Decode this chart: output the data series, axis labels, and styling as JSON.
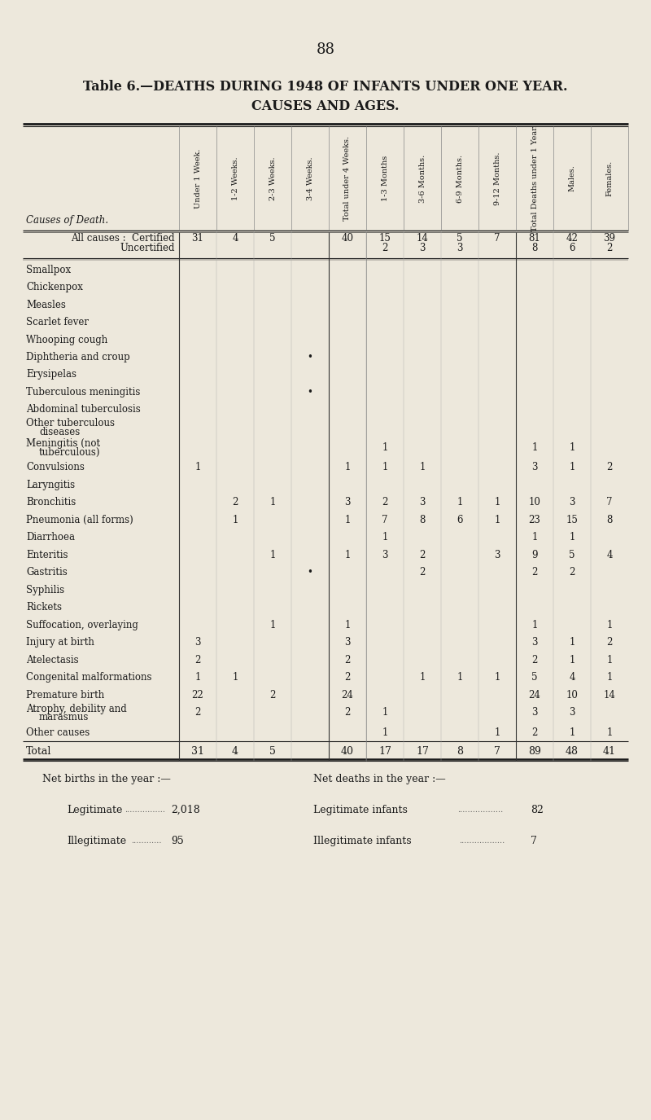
{
  "page_number": "88",
  "title_line1": "Table 6.—DEATHS DURING 1948 OF INFANTS UNDER ONE YEAR.",
  "title_line2": "CAUSES AND AGES.",
  "bg_color": "#ede8dc",
  "col_headers": [
    "Under 1 Week.",
    "1-2 Weeks.",
    "2-3 Weeks.",
    "3-4 Weeks.",
    "Total under 4 Weeks.",
    "1-3 Months",
    "3-6 Months.",
    "6-9 Months.",
    "9-12 Months.",
    "Total Deaths under 1 Year.",
    "Males.",
    "Females."
  ],
  "row_label_col": "Causes of Death.",
  "rows": [
    {
      "label": "All causes :  Certified",
      "label2": "Uncertified",
      "data": [
        "31",
        "4",
        "5",
        "",
        "40",
        "15",
        "14",
        "5",
        "7",
        "81",
        "42",
        "39"
      ],
      "data2": [
        "",
        "",
        "",
        "",
        "",
        "2",
        "3",
        "3",
        "",
        "8",
        "6",
        "2"
      ],
      "is_allcauses": true
    },
    {
      "label": "Smallpox",
      "data": [
        "",
        "",
        "",
        "",
        "",
        "",
        "",
        "",
        "",
        "",
        "",
        ""
      ]
    },
    {
      "label": "Chickenpox",
      "data": [
        "",
        "",
        "",
        "",
        "",
        "",
        "",
        "",
        "",
        "",
        "",
        ""
      ]
    },
    {
      "label": "Measles",
      "data": [
        "",
        "",
        "",
        "",
        "",
        "",
        "",
        "",
        "",
        "",
        "",
        ""
      ]
    },
    {
      "label": "Scarlet fever",
      "data": [
        "",
        "",
        "",
        "",
        "",
        "",
        "",
        "",
        "",
        "",
        "",
        ""
      ]
    },
    {
      "label": "Whooping cough",
      "data": [
        "",
        "",
        "",
        "",
        "",
        "",
        "",
        "",
        "",
        "",
        "",
        ""
      ]
    },
    {
      "label": "Diphtheria and croup",
      "data": [
        "",
        "",
        "",
        "•",
        "",
        "",
        "",
        "",
        "",
        "",
        "",
        ""
      ]
    },
    {
      "label": "Erysipelas",
      "data": [
        "",
        "",
        "",
        "",
        "",
        "",
        "",
        "",
        "",
        "",
        "",
        ""
      ]
    },
    {
      "label": "Tuberculous meningitis",
      "data": [
        "",
        "",
        "",
        "•",
        "",
        "",
        "",
        "",
        "",
        "",
        "",
        ""
      ]
    },
    {
      "label": "Abdominal tuberculosis",
      "data": [
        "",
        "",
        "",
        "",
        "",
        "",
        "",
        "",
        "",
        "",
        "",
        ""
      ]
    },
    {
      "label": "Other tuberculous",
      "data": [
        "",
        "",
        "",
        "",
        "",
        "",
        "",
        "",
        "",
        "",
        "",
        ""
      ],
      "indent2": "diseases"
    },
    {
      "label": "Meningitis (not",
      "data": [
        "",
        "",
        "",
        "",
        "",
        "1",
        "",
        "",
        "",
        "1",
        "1",
        ""
      ],
      "indent2": "tuberculous)"
    },
    {
      "label": "Convulsions",
      "data": [
        "1",
        "",
        "",
        "",
        "1",
        "1",
        "1",
        "",
        "",
        "3",
        "1",
        "2"
      ]
    },
    {
      "label": "Laryngitis",
      "data": [
        "",
        "",
        "",
        "",
        "",
        "",
        "",
        "",
        "",
        "",
        "",
        ""
      ]
    },
    {
      "label": "Bronchitis",
      "data": [
        "",
        "2",
        "1",
        "",
        "3",
        "2",
        "3",
        "1",
        "1",
        "10",
        "3",
        "7"
      ]
    },
    {
      "label": "Pneumonia (all forms)",
      "data": [
        "",
        "1",
        "",
        "",
        "1",
        "7",
        "8",
        "6",
        "1",
        "23",
        "15",
        "8"
      ]
    },
    {
      "label": "Diarrhoea",
      "data": [
        "",
        "",
        "",
        "",
        "",
        "1",
        "",
        "",
        "",
        "1",
        "1",
        ""
      ]
    },
    {
      "label": "Enteritis",
      "data": [
        "",
        "",
        "1",
        "",
        "1",
        "3",
        "2",
        "",
        "3",
        "9",
        "5",
        "4"
      ]
    },
    {
      "label": "Gastritis",
      "data": [
        "",
        "",
        "",
        "•",
        "",
        "",
        "2",
        "",
        "",
        "2",
        "2",
        ""
      ]
    },
    {
      "label": "Syphilis",
      "data": [
        "",
        "",
        "",
        "",
        "",
        "",
        "",
        "",
        "",
        "",
        "",
        ""
      ]
    },
    {
      "label": "Rickets",
      "data": [
        "",
        "",
        "",
        "",
        "",
        "",
        "",
        "",
        "",
        "",
        "",
        ""
      ]
    },
    {
      "label": "Suffocation, overlaying",
      "data": [
        "",
        "",
        "1",
        "",
        "1",
        "",
        "",
        "",
        "",
        "1",
        "",
        "1"
      ]
    },
    {
      "label": "Injury at birth",
      "data": [
        "3",
        "",
        "",
        "",
        "3",
        "",
        "",
        "",
        "",
        "3",
        "1",
        "2"
      ]
    },
    {
      "label": "Atelectasis",
      "data": [
        "2",
        "",
        "",
        "",
        "2",
        "",
        "",
        "",
        "",
        "2",
        "1",
        "1"
      ]
    },
    {
      "label": "Congenital malformations",
      "data": [
        "1",
        "1",
        "",
        "",
        "2",
        "",
        "1",
        "1",
        "1",
        "5",
        "4",
        "1"
      ]
    },
    {
      "label": "Premature birth",
      "data": [
        "22",
        "",
        "2",
        "",
        "24",
        "",
        "",
        "",
        "",
        "24",
        "10",
        "14"
      ]
    },
    {
      "label": "Atrophy, debility and",
      "data": [
        "2",
        "",
        "",
        "",
        "2",
        "1",
        "",
        "",
        "",
        "3",
        "3",
        ""
      ],
      "indent2": "marasmus"
    },
    {
      "label": "Other causes",
      "data": [
        "",
        "",
        "",
        "",
        "",
        "1",
        "",
        "",
        "1",
        "2",
        "1",
        "1"
      ]
    }
  ],
  "total_row": {
    "label": "Total",
    "data": [
      "31",
      "4",
      "5",
      "",
      "40",
      "17",
      "17",
      "8",
      "7",
      "89",
      "48",
      "41"
    ]
  }
}
